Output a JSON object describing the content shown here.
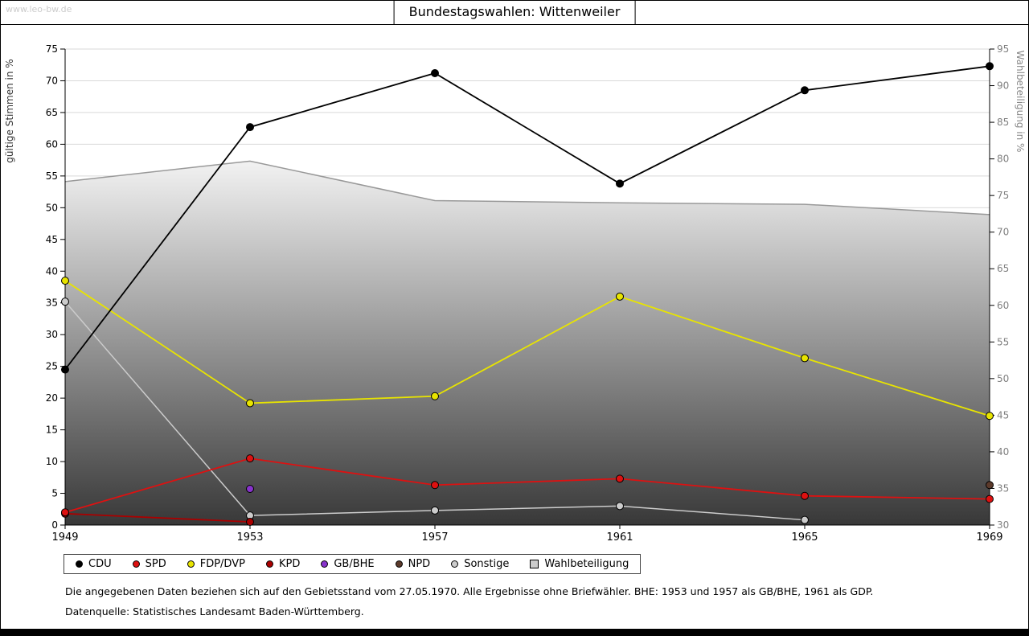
{
  "header_info": {
    "title": "Bundestagswahlen: Wittenweiler",
    "watermark": "www.leo-bw.de"
  },
  "footnotes": {
    "gebietsstand": "Die angegebenen Daten beziehen sich auf den Gebietsstand vom 27.05.1970. Alle Ergebnisse ohne Briefwähler. BHE: 1953 und 1957 als GB/BHE, 1961 als GDP.",
    "datenquelle": "Datenquelle: Statistisches Landesamt Baden-Württemberg."
  },
  "chart_data": {
    "type": "line",
    "title": "Bundestagswahlen: Wittenweiler",
    "x": [
      1949,
      1953,
      1957,
      1961,
      1965,
      1969
    ],
    "left_axis": {
      "label": "gültige Stimmen in %",
      "min": 0,
      "max": 75,
      "step": 5
    },
    "right_axis": {
      "label": "Wahlbeteiligung in %",
      "min": 30,
      "max": 95,
      "step": 5
    },
    "grid": true,
    "legend_position": "bottom",
    "series": [
      {
        "name": "CDU",
        "color": "#000000",
        "axis": "left",
        "marker": "circle",
        "values": [
          24.5,
          62.7,
          71.2,
          53.8,
          68.5,
          72.3
        ]
      },
      {
        "name": "SPD",
        "color": "#dd1111",
        "axis": "left",
        "marker": "circle",
        "values": [
          2.0,
          10.5,
          6.3,
          7.3,
          4.6,
          4.1
        ]
      },
      {
        "name": "FDP/DVP",
        "color": "#e8e400",
        "axis": "left",
        "marker": "circle",
        "values": [
          38.5,
          19.2,
          20.3,
          36.0,
          26.3,
          17.2
        ]
      },
      {
        "name": "KPD",
        "color": "#aa0000",
        "axis": "left",
        "marker": "circle",
        "values": [
          1.8,
          0.5,
          null,
          null,
          null,
          null
        ]
      },
      {
        "name": "GB/BHE",
        "color": "#8833cc",
        "axis": "left",
        "marker": "circle",
        "values": [
          null,
          5.7,
          null,
          null,
          null,
          null
        ]
      },
      {
        "name": "NPD",
        "color": "#5c3a2b",
        "axis": "left",
        "marker": "circle",
        "values": [
          null,
          null,
          null,
          null,
          null,
          6.3
        ]
      },
      {
        "name": "Sonstige",
        "color": "#cccccc",
        "axis": "left",
        "marker": "circle",
        "values": [
          35.2,
          1.5,
          2.3,
          3.0,
          0.8,
          null
        ]
      },
      {
        "name": "Wahlbeteiligung",
        "color": "#999999",
        "axis": "right",
        "marker": "square",
        "area": true,
        "legend_fill": "#cccccc",
        "fill_gradient": [
          "#f2f2f2",
          "#383838"
        ],
        "values": [
          76.9,
          79.7,
          74.3,
          74.0,
          73.8,
          72.4
        ]
      }
    ]
  }
}
